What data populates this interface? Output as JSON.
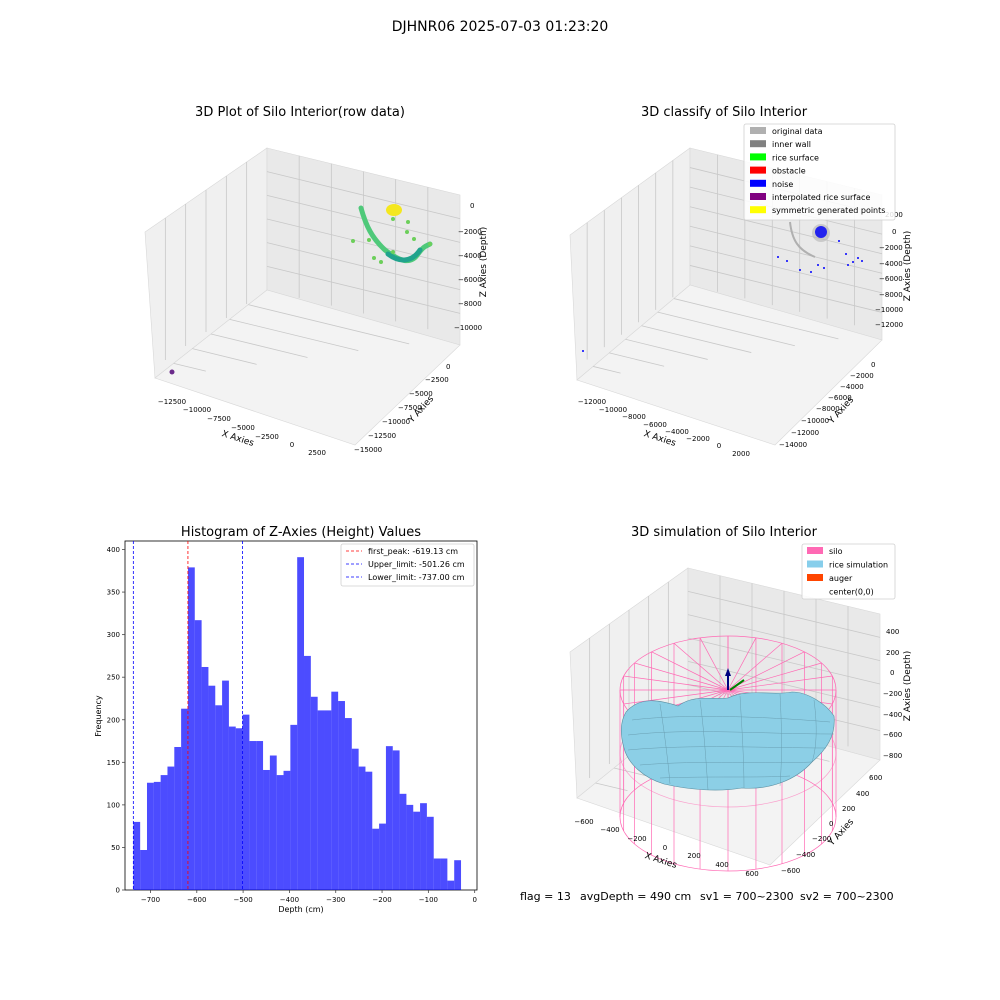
{
  "suptitle": "DJHNR06 2025-07-03 01:23:20",
  "panel1": {
    "title": "3D Plot of Silo Interior(row data)",
    "xlabel": "X Axies",
    "ylabel": "Y Axies",
    "zlabel": "Z Axies (Depth)",
    "xticks": [
      "−12500",
      "−10000",
      "−7500",
      "−5000",
      "−2500",
      "0",
      "2500"
    ],
    "yticks": [
      "0",
      "−2500",
      "−5000",
      "−7500",
      "−10000",
      "−12500",
      "−15000"
    ],
    "zticks": [
      "0",
      "−2000",
      "−4000",
      "−6000",
      "−8000",
      "−10000"
    ]
  },
  "panel2": {
    "title": "3D classify of Silo Interior",
    "xlabel": "X Axies",
    "ylabel": "Y Axies",
    "zlabel": "Z Axies (Depth)",
    "xticks": [
      "−12000",
      "−10000",
      "−8000",
      "−6000",
      "−4000",
      "−2000",
      "0",
      "2000"
    ],
    "yticks": [
      "0",
      "−2000",
      "−4000",
      "−6000",
      "−8000",
      "−10000",
      "−12000",
      "−14000"
    ],
    "zticks": [
      "2000",
      "0",
      "−2000",
      "−4000",
      "−6000",
      "−8000",
      "−10000",
      "−12000"
    ],
    "legend": [
      {
        "label": "original data",
        "color": "#b0b0b0"
      },
      {
        "label": "inner wall",
        "color": "#808080"
      },
      {
        "label": "rice surface",
        "color": "#00ff00"
      },
      {
        "label": "obstacle",
        "color": "#ff0000"
      },
      {
        "label": "noise",
        "color": "#0000ff"
      },
      {
        "label": "interpolated rice surface",
        "color": "#800080"
      },
      {
        "label": "symmetric generated points",
        "color": "#ffff00"
      }
    ]
  },
  "panel4": {
    "title": "3D simulation of Silo Interior",
    "xlabel": "X Axies",
    "ylabel": "Y Axies",
    "zlabel": "Z Axies (Depth)",
    "xticks": [
      "−600",
      "−400",
      "−200",
      "0",
      "200",
      "400",
      "600"
    ],
    "yticks": [
      "600",
      "400",
      "200",
      "0",
      "−200",
      "−400",
      "−600"
    ],
    "zticks": [
      "400",
      "200",
      "0",
      "−200",
      "−400",
      "−600",
      "−800"
    ],
    "legend": [
      {
        "label": "silo",
        "color": "#ff69b4"
      },
      {
        "label": "rice simulation",
        "color": "#87ceeb"
      },
      {
        "label": "auger",
        "color": "#ff4500"
      },
      {
        "label": "center(0,0)",
        "color": "#ffffff"
      }
    ]
  },
  "status": {
    "flag": "flag = 13",
    "avg": "avgDepth = 490 cm",
    "sv1": "sv1 = 700~2300",
    "sv2": "sv2 = 700~2300"
  },
  "chart_data": [
    {
      "type": "bar",
      "title": "Histogram of Z-Axies (Height) Values",
      "xlabel": "Depth (cm)",
      "ylabel": "Frequency",
      "xlim": [
        -755,
        5
      ],
      "ylim": [
        0,
        410
      ],
      "xticks": [
        -700,
        -600,
        -500,
        -400,
        -300,
        -200,
        -100,
        0
      ],
      "yticks": [
        0,
        50,
        100,
        150,
        200,
        250,
        300,
        350,
        400
      ],
      "bin_start": -737,
      "bin_width": 14.74,
      "values": [
        80,
        47,
        126,
        127,
        135,
        145,
        168,
        213,
        379,
        317,
        262,
        240,
        217,
        246,
        192,
        190,
        206,
        175,
        175,
        141,
        158,
        135,
        140,
        194,
        391,
        275,
        227,
        211,
        211,
        233,
        222,
        202,
        166,
        145,
        139,
        72,
        78,
        169,
        164,
        113,
        100,
        92,
        102,
        86,
        37,
        37,
        11,
        35
      ],
      "bar_color": "#0000ff",
      "vlines": [
        {
          "label": "first_peak: -619.13 cm",
          "x": -619.13,
          "color": "#ff0000"
        },
        {
          "label": "Upper_limit: -501.26 cm",
          "x": -501.26,
          "color": "#0000ff"
        },
        {
          "label": "Lower_limit: -737.00 cm",
          "x": -737.0,
          "color": "#0000ff"
        }
      ],
      "legend_position": "upper right"
    }
  ]
}
